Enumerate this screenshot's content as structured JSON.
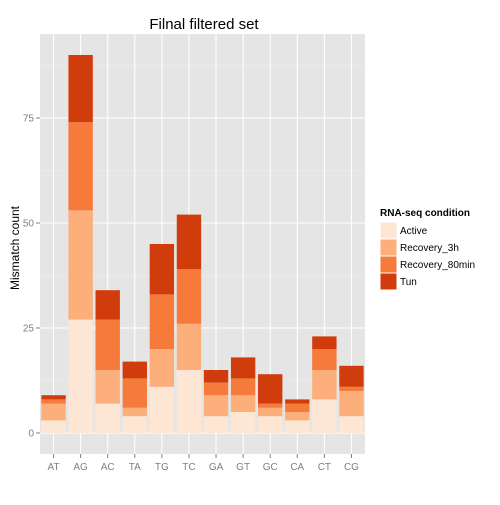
{
  "chart_data": {
    "type": "bar",
    "stacked": true,
    "title": "Filnal filtered set",
    "xlabel": "",
    "ylabel": "Mismatch count",
    "ylim": [
      -5,
      95
    ],
    "yticks": [
      0,
      25,
      50,
      75
    ],
    "categories": [
      "AT",
      "AG",
      "AC",
      "TA",
      "TG",
      "TC",
      "GA",
      "GT",
      "GC",
      "CA",
      "CT",
      "CG"
    ],
    "legend": {
      "title": "RNA-seq condition",
      "position": "right"
    },
    "series": [
      {
        "name": "Active",
        "color": "#fde6d4",
        "values": [
          3,
          27,
          7,
          4,
          11,
          15,
          4,
          5,
          4,
          3,
          8,
          4
        ]
      },
      {
        "name": "Recovery_3h",
        "color": "#fcae7b",
        "values": [
          4,
          26,
          8,
          2,
          9,
          11,
          5,
          4,
          2,
          2,
          7,
          6
        ]
      },
      {
        "name": "Recovery_80min",
        "color": "#f67b3a",
        "values": [
          1,
          21,
          12,
          7,
          13,
          13,
          3,
          4,
          1,
          2,
          5,
          1
        ]
      },
      {
        "name": "Tun",
        "color": "#d13c0c",
        "values": [
          1,
          16,
          7,
          4,
          12,
          13,
          3,
          5,
          7,
          1,
          3,
          5
        ]
      }
    ],
    "grid": true,
    "panel_color": "#e5e5e5"
  }
}
